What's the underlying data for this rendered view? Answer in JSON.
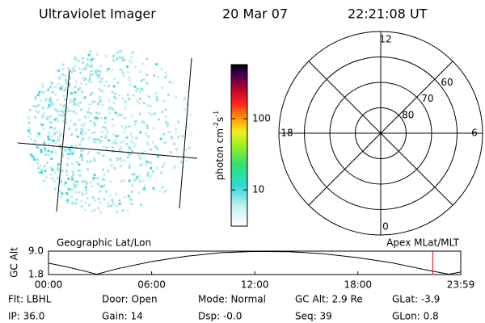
{
  "header": {
    "title": "Ultraviolet Imager",
    "date": "20 Mar 07",
    "time": "22:21:08 UT"
  },
  "colorbar": {
    "label": [
      "photon cm",
      "-2",
      "s",
      "-1"
    ],
    "scale": "log",
    "lim": [
      3.1,
      575
    ],
    "ticks": [
      10,
      100
    ]
  },
  "polar": {
    "lat_min": 50,
    "lat_rings": [
      80,
      70,
      60
    ],
    "mlt_labels": [
      12,
      18,
      6,
      0
    ]
  },
  "captions": [
    "Geographic Lat/Lon",
    "Apex MLat/MLT"
  ],
  "timeline": {
    "ylabel": "GC Alt",
    "ylim": [
      1.8,
      9.0
    ],
    "yticks": [
      {
        "value": 9.0,
        "label": "9.0"
      },
      {
        "value": 1.8,
        "label": "1.8"
      }
    ],
    "xlim": [
      0,
      23.983
    ],
    "xticks": [
      {
        "value": 0,
        "label": "00:00"
      },
      {
        "value": 6,
        "label": "06:00"
      },
      {
        "value": 12,
        "label": "12:00"
      },
      {
        "value": 18,
        "label": "18:00"
      },
      {
        "value": 23.983,
        "label": "23:59"
      }
    ],
    "hours": [
      0,
      1,
      2,
      2.8,
      4,
      6,
      8,
      10,
      12,
      14,
      16,
      18,
      20,
      22,
      23.3,
      24
    ],
    "alt": [
      5.3,
      4.2,
      3.0,
      1.9,
      3.6,
      5.8,
      7.4,
      8.5,
      8.9,
      8.8,
      8.2,
      7.0,
      5.4,
      3.2,
      1.9,
      2.6
    ],
    "current_hour": 22.35
  },
  "status": [
    [
      "Flt: LBHL",
      "IP: 36.0"
    ],
    [
      "Door: Open",
      "Gain: 14"
    ],
    [
      "Mode: Normal",
      "Dsp: -0.0"
    ],
    [
      "GC Alt: 2.9 Re",
      "Seq: 39"
    ],
    [
      "GLat: -3.9",
      "GLon: 0.8"
    ]
  ]
}
